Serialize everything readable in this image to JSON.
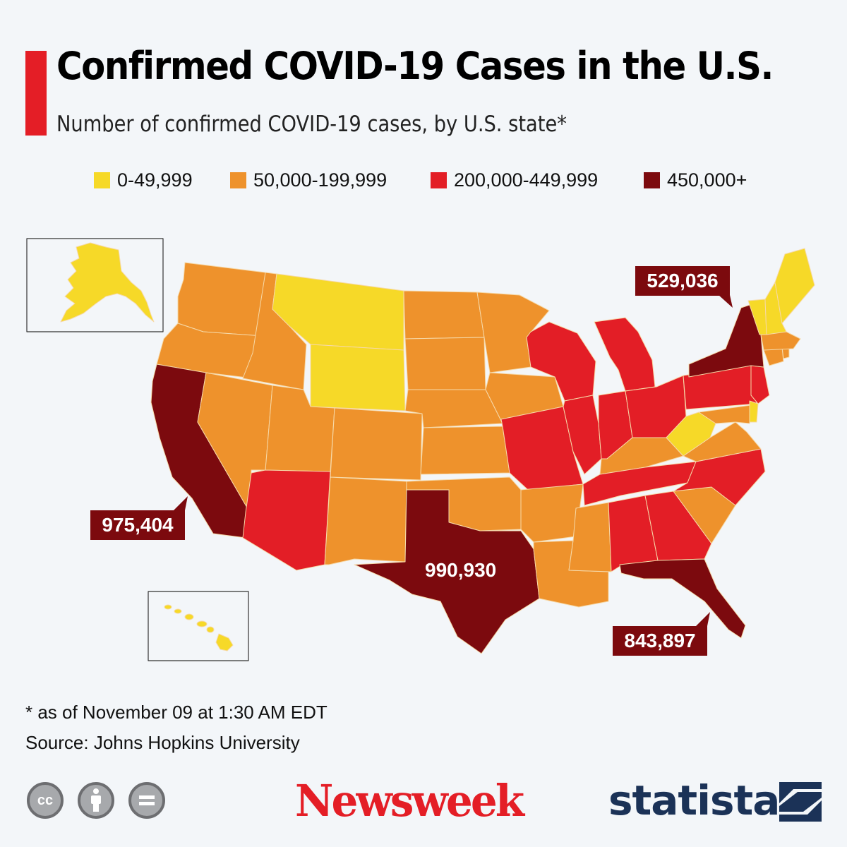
{
  "header": {
    "title": "Confirmed COVID-19 Cases in the U.S.",
    "subtitle": "Number of confirmed COVID-19 cases, by U.S. state*"
  },
  "colors": {
    "accent": "#e41e26",
    "tier_1": "#f6d928",
    "tier_2": "#ee922c",
    "tier_3": "#e31e26",
    "tier_4": "#7c0a0e",
    "brand_statista": "#1b3257"
  },
  "legend": [
    {
      "label": "0-49,999",
      "color": "#f6d928"
    },
    {
      "label": "50,000-199,999",
      "color": "#ee922c"
    },
    {
      "label": "200,000-449,999",
      "color": "#e31e26"
    },
    {
      "label": "450,000+",
      "color": "#7c0a0e"
    }
  ],
  "callouts": {
    "new_york": "529,036",
    "california": "975,404",
    "texas": "990,930",
    "florida": "843,897"
  },
  "map_data": {
    "tier_labels": [
      "0-49,999",
      "50,000-199,999",
      "200,000-449,999",
      "450,000+"
    ],
    "states": {
      "Alaska": 0,
      "Hawaii": 0,
      "Montana": 0,
      "Wyoming": 0,
      "Maine": 0,
      "New Hampshire": 0,
      "Vermont": 0,
      "West Virginia": 0,
      "Delaware": 0,
      "Washington": 1,
      "Oregon": 1,
      "Idaho": 1,
      "Nevada": 1,
      "Utah": 1,
      "Colorado": 1,
      "New Mexico": 1,
      "North Dakota": 1,
      "South Dakota": 1,
      "Nebraska": 1,
      "Kansas": 1,
      "Oklahoma": 1,
      "Minnesota": 1,
      "Iowa": 1,
      "Arkansas": 1,
      "Louisiana": 1,
      "Mississippi": 1,
      "Kentucky": 1,
      "Virginia": 1,
      "South Carolina": 1,
      "Maryland": 1,
      "Massachusetts": 1,
      "Connecticut": 1,
      "Rhode Island": 1,
      "Arizona": 2,
      "Missouri": 2,
      "Wisconsin": 2,
      "Illinois": 2,
      "Michigan": 2,
      "Indiana": 2,
      "Ohio": 2,
      "Tennessee": 2,
      "Alabama": 2,
      "Georgia": 2,
      "North Carolina": 2,
      "Pennsylvania": 2,
      "New Jersey": 2,
      "California": 3,
      "Texas": 3,
      "Florida": 3,
      "New York": 3
    }
  },
  "notes": {
    "as_of": "* as of November 09 at 1:30 AM EDT",
    "source": "Source: Johns Hopkins University"
  },
  "footer": {
    "newsweek": "Newsweek",
    "statista": "statista",
    "cc_label": "cc"
  },
  "icons": [
    "cc-icon",
    "attribution-icon",
    "no-derivatives-icon",
    "statista-logo-icon"
  ]
}
